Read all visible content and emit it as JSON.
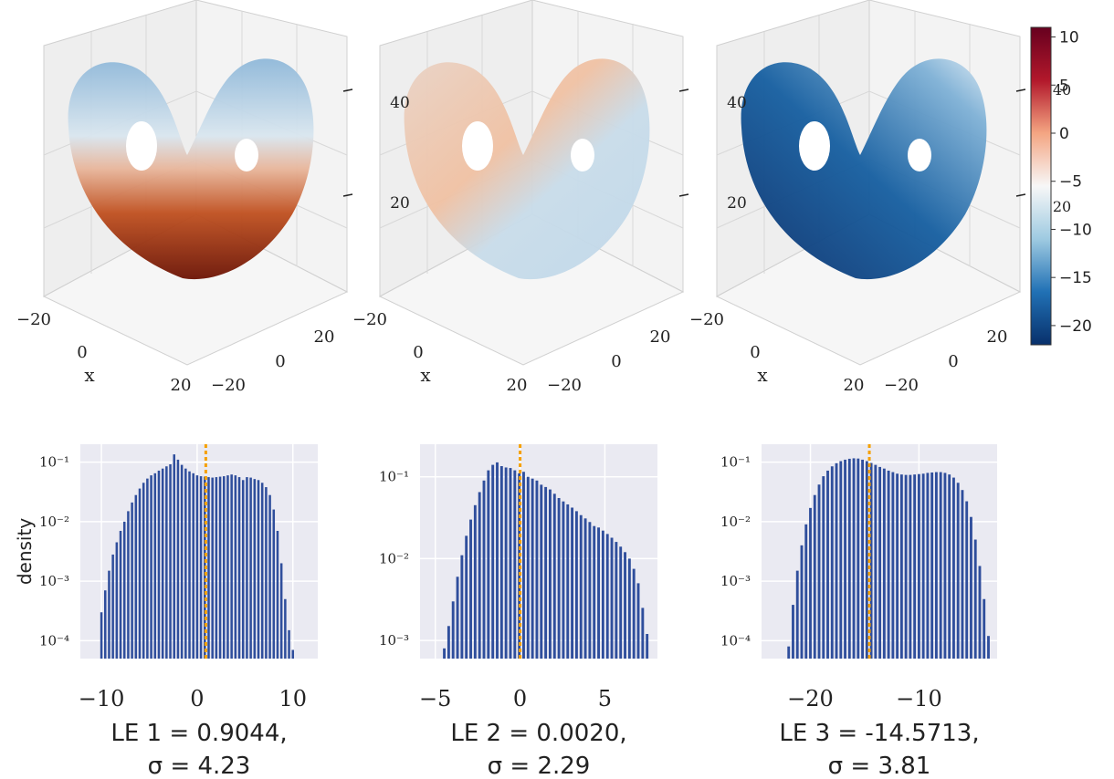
{
  "colorbar": {
    "ticks": [
      10,
      5,
      0,
      -5,
      -10,
      -15,
      -20
    ],
    "tick_labels": [
      "10",
      "5",
      "0",
      "−5",
      "−10",
      "−15",
      "−20"
    ],
    "range": [
      -22,
      11
    ],
    "colormap": [
      "#08306b",
      "#2171b5",
      "#9ecae1",
      "#f7f7f7",
      "#f4a582",
      "#b2182b",
      "#67001f"
    ]
  },
  "scatter_panels": [
    {
      "x_ticks": [
        "−20",
        "0",
        "20"
      ],
      "y_ticks": [
        "−20",
        "0",
        "20"
      ],
      "z_ticks": [],
      "x_label": "x"
    },
    {
      "x_ticks": [
        "−20",
        "0",
        "20"
      ],
      "y_ticks": [
        "−20",
        "0",
        "20"
      ],
      "z_ticks": [
        "20",
        "40"
      ],
      "x_label": "x"
    },
    {
      "x_ticks": [
        "−20",
        "0",
        "20"
      ],
      "y_ticks": [
        "−20",
        "0",
        "20"
      ],
      "z_ticks": [
        "20",
        "40"
      ],
      "x_label": "x"
    }
  ],
  "colorbar_overlay_ticks": [
    "40",
    "20"
  ],
  "chart_data": [
    {
      "type": "histogram",
      "ylabel": "density",
      "y_scale": "log",
      "ylim": [
        5e-05,
        0.2
      ],
      "y_ticks": [
        {
          "value": 0.1,
          "label": "10⁻¹"
        },
        {
          "value": 0.01,
          "label": "10⁻²"
        },
        {
          "value": 0.001,
          "label": "10⁻³"
        },
        {
          "value": 0.0001,
          "label": "10⁻⁴"
        }
      ],
      "x_ticks": [
        {
          "value": -10,
          "label": "−10"
        },
        {
          "value": 0,
          "label": "0"
        },
        {
          "value": 10,
          "label": "10"
        }
      ],
      "xlim": [
        -12.2,
        12.6
      ],
      "bin_start": -10.6,
      "bin_width": 0.4,
      "values": [
        5e-05,
        0.0003,
        0.0007,
        0.0015,
        0.0028,
        0.0045,
        0.007,
        0.01,
        0.015,
        0.021,
        0.028,
        0.036,
        0.045,
        0.053,
        0.06,
        0.065,
        0.072,
        0.078,
        0.085,
        0.092,
        0.135,
        0.11,
        0.09,
        0.078,
        0.07,
        0.065,
        0.06,
        0.058,
        0.057,
        0.056,
        0.055,
        0.056,
        0.057,
        0.058,
        0.06,
        0.062,
        0.06,
        0.056,
        0.05,
        0.056,
        0.055,
        0.052,
        0.05,
        0.045,
        0.038,
        0.028,
        0.016,
        0.007,
        0.002,
        0.0005,
        0.00015,
        7e-05
      ],
      "mean_line": 0.9044,
      "caption_line1": "LE 1 = 0.9044,",
      "caption_line2": "σ = 4.23"
    },
    {
      "type": "histogram",
      "ylabel": "",
      "y_scale": "log",
      "ylim": [
        0.0006,
        0.25
      ],
      "y_ticks": [
        {
          "value": 0.1,
          "label": "10⁻¹"
        },
        {
          "value": 0.01,
          "label": "10⁻²"
        },
        {
          "value": 0.001,
          "label": "10⁻³"
        }
      ],
      "x_ticks": [
        {
          "value": -5,
          "label": "−5"
        },
        {
          "value": 0,
          "label": "0"
        },
        {
          "value": 5,
          "label": "5"
        }
      ],
      "xlim": [
        -5.9,
        8.1
      ],
      "bin_start": -4.6,
      "bin_width": 0.26,
      "values": [
        0.0008,
        0.0015,
        0.003,
        0.006,
        0.011,
        0.019,
        0.03,
        0.045,
        0.065,
        0.09,
        0.12,
        0.14,
        0.15,
        0.135,
        0.13,
        0.128,
        0.12,
        0.11,
        0.115,
        0.1,
        0.095,
        0.09,
        0.08,
        0.075,
        0.07,
        0.062,
        0.055,
        0.05,
        0.046,
        0.042,
        0.038,
        0.034,
        0.031,
        0.028,
        0.025,
        0.024,
        0.022,
        0.02,
        0.018,
        0.016,
        0.014,
        0.012,
        0.01,
        0.0075,
        0.005,
        0.0025,
        0.0012
      ],
      "mean_line": 0.002,
      "caption_line1": "LE 2 = 0.0020,",
      "caption_line2": "σ = 2.29"
    },
    {
      "type": "histogram",
      "ylabel": "",
      "y_scale": "log",
      "ylim": [
        5e-05,
        0.2
      ],
      "y_ticks": [
        {
          "value": 0.1,
          "label": "10⁻¹"
        },
        {
          "value": 0.01,
          "label": "10⁻²"
        },
        {
          "value": 0.001,
          "label": "10⁻³"
        },
        {
          "value": 0.0001,
          "label": "10⁻⁴"
        }
      ],
      "x_ticks": [
        {
          "value": -20,
          "label": "−20"
        },
        {
          "value": -10,
          "label": "−10"
        }
      ],
      "xlim": [
        -24.5,
        -2.8
      ],
      "bin_start": -22.2,
      "bin_width": 0.4,
      "values": [
        8e-05,
        0.0004,
        0.0015,
        0.004,
        0.009,
        0.017,
        0.028,
        0.042,
        0.058,
        0.072,
        0.085,
        0.096,
        0.104,
        0.11,
        0.114,
        0.116,
        0.115,
        0.11,
        0.104,
        0.097,
        0.09,
        0.083,
        0.078,
        0.072,
        0.068,
        0.064,
        0.062,
        0.061,
        0.061,
        0.062,
        0.063,
        0.064,
        0.066,
        0.067,
        0.068,
        0.068,
        0.066,
        0.062,
        0.055,
        0.045,
        0.034,
        0.022,
        0.012,
        0.005,
        0.0018,
        0.0005,
        0.00012
      ],
      "mean_line": -14.5713,
      "caption_line1": "LE 3 = -14.5713,",
      "caption_line2": "σ = 3.81"
    }
  ]
}
